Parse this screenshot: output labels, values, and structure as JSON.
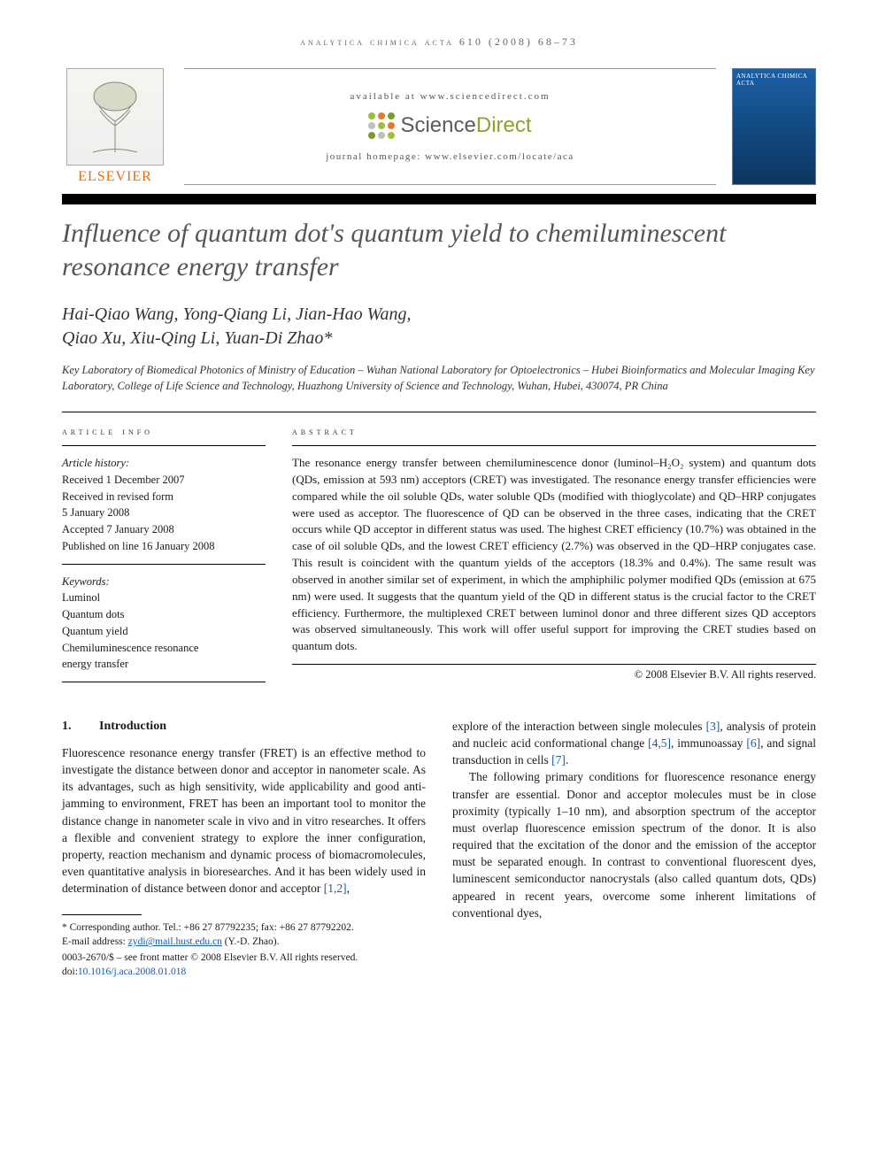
{
  "running_head": "analytica chimica acta 610 (2008) 68–73",
  "masthead": {
    "publisher": "ELSEVIER",
    "available_at": "available at www.sciencedirect.com",
    "sd_brand_left": "Science",
    "sd_brand_right": "Direct",
    "sd_dot_colors": [
      "#9fbf3b",
      "#e17a2d",
      "#7a9a2e",
      "#c0c0c0",
      "#9fbf3b",
      "#e17a2d",
      "#7a9a2e",
      "#c0c0c0",
      "#9fbf3b"
    ],
    "homepage_label": "journal homepage: www.elsevier.com/locate/aca",
    "cover_title": "ANALYTICA CHIMICA ACTA"
  },
  "article": {
    "title": "Influence of quantum dot's quantum yield to chemiluminescent resonance energy transfer",
    "authors_line1": "Hai-Qiao Wang, Yong-Qiang Li, Jian-Hao Wang,",
    "authors_line2": "Qiao Xu, Xiu-Qing Li, Yuan-Di Zhao*",
    "affiliation": "Key Laboratory of Biomedical Photonics of Ministry of Education – Wuhan National Laboratory for Optoelectronics – Hubei Bioinformatics and Molecular Imaging Key Laboratory, College of Life Science and Technology, Huazhong University of Science and Technology, Wuhan, Hubei, 430074, PR China"
  },
  "info": {
    "section_label": "article info",
    "history_label": "Article history:",
    "history": [
      "Received 1 December 2007",
      "Received in revised form",
      "5 January 2008",
      "Accepted 7 January 2008",
      "Published on line 16 January 2008"
    ],
    "keywords_label": "Keywords:",
    "keywords": [
      "Luminol",
      "Quantum dots",
      "Quantum yield",
      "Chemiluminescence resonance",
      "energy transfer"
    ]
  },
  "abstract": {
    "section_label": "abstract",
    "text": "The resonance energy transfer between chemiluminescence donor (luminol–H₂O₂ system) and quantum dots (QDs, emission at 593 nm) acceptors (CRET) was investigated. The resonance energy transfer efficiencies were compared while the oil soluble QDs, water soluble QDs (modified with thioglycolate) and QD–HRP conjugates were used as acceptor. The fluorescence of QD can be observed in the three cases, indicating that the CRET occurs while QD acceptor in different status was used. The highest CRET efficiency (10.7%) was obtained in the case of oil soluble QDs, and the lowest CRET efficiency (2.7%) was observed in the QD–HRP conjugates case. This result is coincident with the quantum yields of the acceptors (18.3% and 0.4%). The same result was observed in another similar set of experiment, in which the amphiphilic polymer modified QDs (emission at 675 nm) were used. It suggests that the quantum yield of the QD in different status is the crucial factor to the CRET efficiency. Furthermore, the multiplexed CRET between luminol donor and three different sizes QD acceptors was observed simultaneously. This work will offer useful support for improving the CRET studies based on quantum dots.",
    "copyright": "© 2008 Elsevier B.V. All rights reserved."
  },
  "body": {
    "section1": {
      "num": "1.",
      "title": "Introduction"
    },
    "col1_p1_a": "Fluorescence resonance energy transfer (FRET) is an effective method to investigate the distance between donor and acceptor in nanometer scale. As its advantages, such as high sensitivity, wide applicability and good anti-jamming to environment, FRET has been an important tool to monitor the distance change in nanometer scale in vivo and in vitro researches. It offers a flexible and convenient strategy to explore the inner configuration, property, reaction mechanism and dynamic process of biomacromolecules, even quantitative analysis in bioresearches. And it has been widely used in determination of distance between donor and acceptor ",
    "ref12": "[1,2]",
    "col1_p1_b": ",",
    "col2_p1_a": "explore of the interaction between single molecules ",
    "ref3": "[3]",
    "col2_p1_b": ", analysis of protein and nucleic acid conformational change ",
    "ref45": "[4,5]",
    "col2_p1_c": ", immunoassay ",
    "ref6": "[6]",
    "col2_p1_d": ", and signal transduction in cells ",
    "ref7": "[7]",
    "col2_p1_e": ".",
    "col2_p2": "The following primary conditions for fluorescence resonance energy transfer are essential. Donor and acceptor molecules must be in close proximity (typically 1–10 nm), and absorption spectrum of the acceptor must overlap fluorescence emission spectrum of the donor. It is also required that the excitation of the donor and the emission of the acceptor must be separated enough. In contrast to conventional fluorescent dyes, luminescent semiconductor nanocrystals (also called quantum dots, QDs) appeared in recent years, overcome some inherent limitations of conventional dyes,"
  },
  "footnotes": {
    "corr": "* Corresponding author. Tel.: +86 27 87792235; fax: +86 27 87792202.",
    "email_label": "E-mail address: ",
    "email": "zydi@mail.hust.edu.cn",
    "email_tail": " (Y.-D. Zhao).",
    "front_matter": "0003-2670/$ – see front matter © 2008 Elsevier B.V. All rights reserved.",
    "doi_label": "doi:",
    "doi": "10.1016/j.aca.2008.01.018"
  },
  "colors": {
    "title_gray": "#555555",
    "link_blue": "#1558b0",
    "elsevier_orange": "#eb6b0b",
    "sd_green": "#8aa52e"
  }
}
